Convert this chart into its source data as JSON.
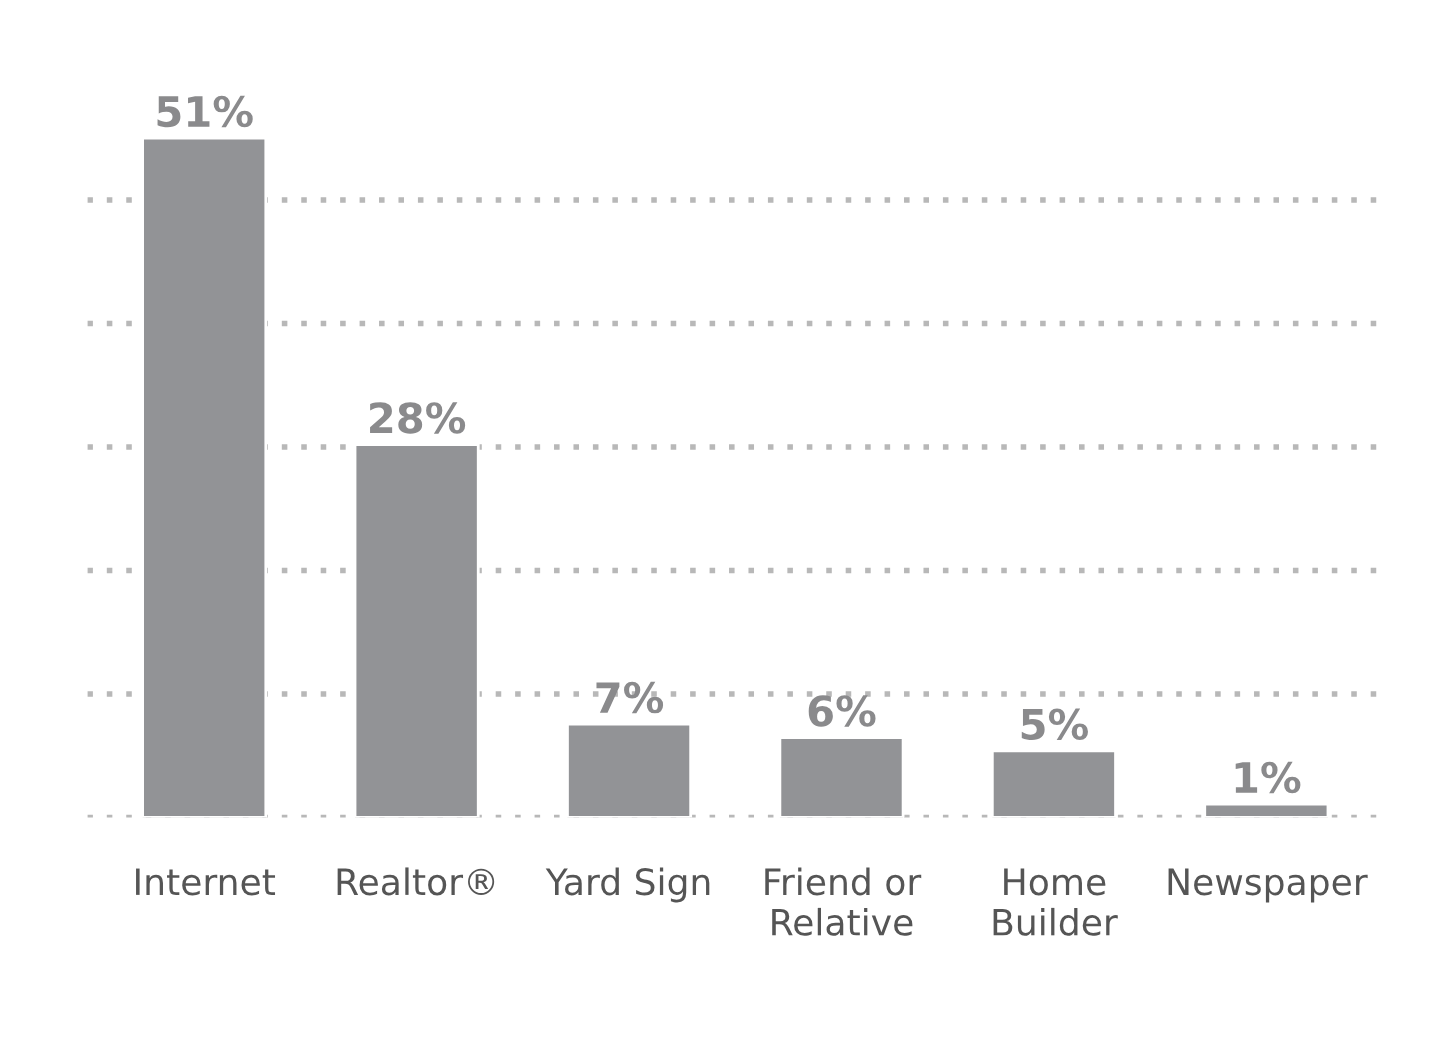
{
  "chart_data": {
    "type": "bar",
    "categories": [
      "Internet",
      "Realtor®",
      "Yard Sign",
      "Friend or\nRelative",
      "Home\nBuilder",
      "Newspaper"
    ],
    "values": [
      51,
      28,
      7,
      6,
      5,
      1
    ],
    "value_labels": [
      "51%",
      "28%",
      "7%",
      "6%",
      "5%",
      "1%"
    ],
    "color": "#929396",
    "grid": "y",
    "tick_labels": "x",
    "legend": false
  }
}
